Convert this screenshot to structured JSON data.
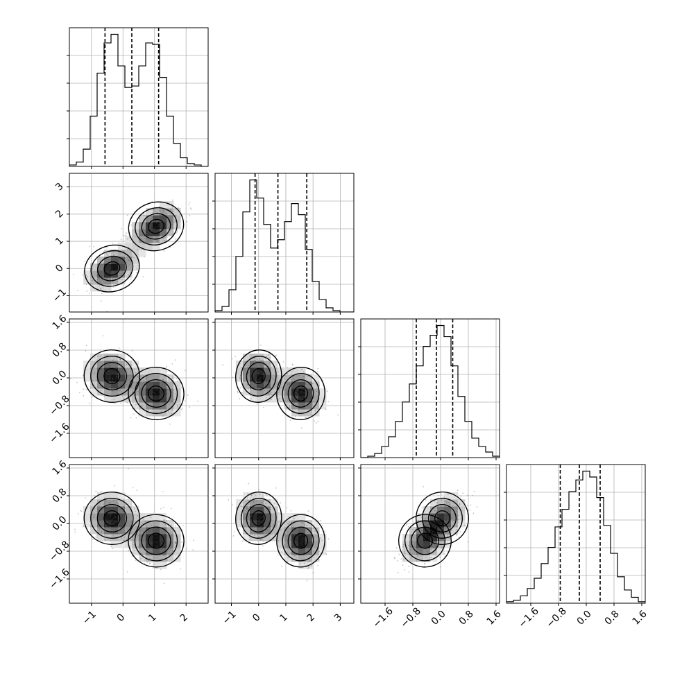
{
  "chart_data": {
    "type": "corner",
    "grid": true,
    "parameters": 4,
    "ranges": [
      [
        -1.7,
        2.7
      ],
      [
        -1.6,
        3.5
      ],
      [
        -2.3,
        1.7
      ],
      [
        -2.3,
        1.7
      ]
    ],
    "ticks": [
      {
        "values": [
          -1,
          0,
          1,
          2
        ],
        "labels": [
          "−1",
          "0",
          "1",
          "2"
        ]
      },
      {
        "values": [
          -1,
          0,
          1,
          2,
          3
        ],
        "labels": [
          "−1",
          "0",
          "1",
          "2",
          "3"
        ]
      },
      {
        "values": [
          -1.6,
          -0.8,
          0.0,
          0.8,
          1.6
        ],
        "labels": [
          "−1.6",
          "−0.8",
          "0.0",
          "0.8",
          "1.6"
        ]
      },
      {
        "values": [
          -1.6,
          -0.8,
          0.0,
          0.8,
          1.6
        ],
        "labels": [
          "−1.6",
          "−0.8",
          "0.0",
          "0.8",
          "1.6"
        ]
      }
    ],
    "quantiles": [
      [
        -0.57,
        0.28,
        1.13
      ],
      [
        -0.13,
        0.71,
        1.77
      ],
      [
        -0.7,
        -0.12,
        0.35
      ],
      [
        -0.75,
        -0.2,
        0.4
      ]
    ],
    "histograms": [
      {
        "bins": [
          -1.7,
          -1.48,
          -1.26,
          -1.04,
          -0.82,
          -0.6,
          -0.38,
          -0.16,
          0.06,
          0.28,
          0.5,
          0.72,
          0.94,
          1.16,
          1.38,
          1.6,
          1.82,
          2.04,
          2.26,
          2.48,
          2.7
        ],
        "counts": [
          1,
          3,
          12,
          35,
          65,
          86,
          92,
          70,
          55,
          56,
          70,
          86,
          85,
          62,
          35,
          16,
          6,
          2,
          1,
          0
        ]
      },
      {
        "bins": [
          -1.6,
          -1.345,
          -1.09,
          -0.835,
          -0.58,
          -0.325,
          -0.07,
          0.185,
          0.44,
          0.695,
          0.95,
          1.205,
          1.46,
          1.715,
          1.97,
          2.225,
          2.48,
          2.735,
          2.99,
          3.245,
          3.5
        ],
        "counts": [
          1,
          4,
          16,
          40,
          72,
          95,
          82,
          63,
          46,
          52,
          65,
          78,
          70,
          45,
          22,
          9,
          3,
          1,
          0,
          0
        ]
      },
      {
        "bins": [
          -2.3,
          -2.1,
          -1.9,
          -1.7,
          -1.5,
          -1.3,
          -1.1,
          -0.9,
          -0.7,
          -0.5,
          -0.3,
          -0.1,
          0.1,
          0.3,
          0.5,
          0.7,
          0.9,
          1.1,
          1.3,
          1.5,
          1.7
        ],
        "counts": [
          0,
          1,
          3,
          8,
          15,
          26,
          40,
          53,
          66,
          80,
          88,
          95,
          87,
          66,
          44,
          26,
          14,
          8,
          4,
          1
        ]
      },
      {
        "bins": [
          -2.3,
          -2.1,
          -1.9,
          -1.7,
          -1.5,
          -1.3,
          -1.1,
          -0.9,
          -0.7,
          -0.5,
          -0.3,
          -0.1,
          0.1,
          0.3,
          0.5,
          0.7,
          0.9,
          1.1,
          1.3,
          1.5,
          1.7
        ],
        "counts": [
          1,
          2,
          5,
          10,
          17,
          27,
          38,
          52,
          64,
          76,
          84,
          90,
          86,
          72,
          53,
          34,
          18,
          9,
          4,
          1
        ]
      }
    ],
    "modes": [
      {
        "mean": [
          -0.35,
          0.0,
          0.05,
          0.15
        ],
        "sd": [
          0.42,
          0.4,
          0.36,
          0.36
        ],
        "weight": 0.5
      },
      {
        "mean": [
          1.05,
          1.55,
          -0.45,
          -0.5
        ],
        "sd": [
          0.42,
          0.42,
          0.36,
          0.36
        ],
        "weight": 0.5
      }
    ],
    "correlations": {
      "1-0": 0.45,
      "2-0": -0.15,
      "2-1": -0.2,
      "3-0": -0.1,
      "3-1": -0.15,
      "3-2": 0.4
    }
  }
}
